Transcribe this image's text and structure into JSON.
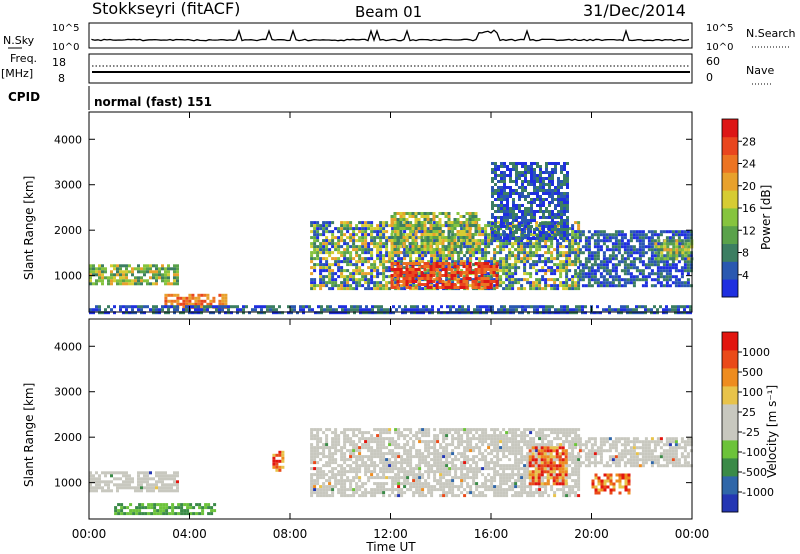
{
  "header": {
    "station": "Stokkseyri (fitACF)",
    "beam": "Beam 01",
    "date": "31/Dec/2014"
  },
  "status_panel": {
    "nsky_label": "N.Sky",
    "nsky_ticks": [
      "10^5",
      "10^0"
    ],
    "nsearch_label": "N.Search",
    "nsearch_ticks": [
      "10^5",
      "10^0"
    ],
    "freq_label": "Freq.",
    "freq_unit": "[MHz]",
    "freq_ticks": [
      "18",
      "8"
    ],
    "nave_label": "Nave",
    "nave_ticks": [
      "60",
      "0"
    ],
    "cpid_label": "CPID",
    "cpid_value": "normal (fast) 151"
  },
  "chart_data": [
    {
      "type": "heatmap",
      "name": "power",
      "ylabel": "Slant Range [km]",
      "yticks": [
        "1000",
        "2000",
        "3000",
        "4000"
      ],
      "ylim": [
        200,
        4600
      ],
      "xlim": [
        0,
        24
      ],
      "colorbar": {
        "title": "Power [dB]",
        "labels": [
          "4",
          "8",
          "12",
          "16",
          "20",
          "24",
          "28"
        ],
        "colors": [
          "#1f2fe0",
          "#2a58b0",
          "#3c7e62",
          "#5aa24a",
          "#86c43e",
          "#d6cc33",
          "#e8a12c",
          "#ec7422",
          "#e9461e",
          "#dd1616"
        ]
      },
      "echoes": [
        {
          "t": [
            0.0,
            3.5
          ],
          "r": [
            800,
            1250
          ],
          "level": "mid"
        },
        {
          "t": [
            3.0,
            5.5
          ],
          "r": [
            300,
            600
          ],
          "level": "high"
        },
        {
          "t": [
            0.0,
            24.0
          ],
          "r": [
            200,
            350
          ],
          "level": "low"
        },
        {
          "t": [
            8.8,
            19.5
          ],
          "r": [
            700,
            2200
          ],
          "level": "mixed"
        },
        {
          "t": [
            12.0,
            16.2
          ],
          "r": [
            750,
            1300
          ],
          "level": "peak"
        },
        {
          "t": [
            12.0,
            15.5
          ],
          "r": [
            1500,
            2400
          ],
          "level": "mid"
        },
        {
          "t": [
            16.0,
            19.0
          ],
          "r": [
            1800,
            3500
          ],
          "level": "low"
        },
        {
          "t": [
            19.5,
            24.0
          ],
          "r": [
            800,
            2000
          ],
          "level": "low"
        },
        {
          "t": [
            22.5,
            24.0
          ],
          "r": [
            1400,
            1800
          ],
          "level": "mid"
        }
      ]
    },
    {
      "type": "heatmap",
      "name": "velocity",
      "xlabel": "Time UT",
      "ylabel": "Slant Range [km]",
      "yticks": [
        "1000",
        "2000",
        "3000",
        "4000"
      ],
      "ylim": [
        200,
        4600
      ],
      "xticks": [
        "00:00",
        "04:00",
        "08:00",
        "12:00",
        "16:00",
        "20:00",
        "00:00"
      ],
      "xlim": [
        0,
        24
      ],
      "colorbar": {
        "title": "Velocity  [m s⁻¹]",
        "labels": [
          "1000",
          "500",
          "100",
          "25",
          "-25",
          "-100",
          "-500",
          "-1000"
        ],
        "colors": [
          "#2436b3",
          "#2f66a8",
          "#3a8a47",
          "#6cc33a",
          "#c8c8bf",
          "#c8c8bf",
          "#e8c34a",
          "#ee8c1f",
          "#ea4a19",
          "#e2150f"
        ]
      },
      "echoes": [
        {
          "t": [
            0.0,
            3.5
          ],
          "r": [
            800,
            1250
          ],
          "level": "ground"
        },
        {
          "t": [
            1.0,
            5.0
          ],
          "r": [
            300,
            550
          ],
          "level": "positive"
        },
        {
          "t": [
            7.3,
            7.7
          ],
          "r": [
            1300,
            1700
          ],
          "level": "negative"
        },
        {
          "t": [
            8.8,
            19.5
          ],
          "r": [
            700,
            2200
          ],
          "level": "ground"
        },
        {
          "t": [
            17.5,
            19.0
          ],
          "r": [
            1000,
            1800
          ],
          "level": "negative"
        },
        {
          "t": [
            20.0,
            21.5
          ],
          "r": [
            800,
            1200
          ],
          "level": "negative"
        },
        {
          "t": [
            19.5,
            24.0
          ],
          "r": [
            1400,
            2000
          ],
          "level": "ground"
        }
      ]
    }
  ]
}
